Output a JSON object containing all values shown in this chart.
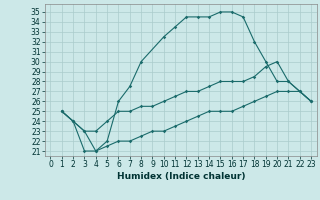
{
  "xlabel": "Humidex (Indice chaleur)",
  "background_color": "#cce8e8",
  "grid_color": "#aacccc",
  "line_color": "#1a6b6b",
  "xlim": [
    -0.5,
    23.5
  ],
  "ylim": [
    20.5,
    35.8
  ],
  "xticks": [
    0,
    1,
    2,
    3,
    4,
    5,
    6,
    7,
    8,
    9,
    10,
    11,
    12,
    13,
    14,
    15,
    16,
    17,
    18,
    19,
    20,
    21,
    22,
    23
  ],
  "yticks": [
    21,
    22,
    23,
    24,
    25,
    26,
    27,
    28,
    29,
    30,
    31,
    32,
    33,
    34,
    35
  ],
  "series1_x": [
    1,
    2,
    3,
    4,
    5,
    6,
    7,
    8,
    10,
    11,
    12,
    13,
    14,
    15,
    16,
    17,
    18,
    19,
    20,
    21,
    23
  ],
  "series1_y": [
    25,
    24,
    21,
    21,
    22,
    26,
    27.5,
    30,
    32.5,
    33.5,
    34.5,
    34.5,
    34.5,
    35,
    35,
    34.5,
    32,
    30,
    28,
    28,
    26
  ],
  "series2_x": [
    1,
    2,
    3,
    4,
    5,
    6,
    7,
    8,
    9,
    10,
    11,
    12,
    13,
    14,
    15,
    16,
    17,
    18,
    19,
    20,
    21,
    22,
    23
  ],
  "series2_y": [
    25,
    24,
    23,
    23,
    24,
    25,
    25,
    25.5,
    25.5,
    26,
    26.5,
    27,
    27,
    27.5,
    28,
    28,
    28,
    28.5,
    29.5,
    30,
    28,
    27,
    26
  ],
  "series3_x": [
    1,
    2,
    3,
    4,
    5,
    6,
    7,
    8,
    9,
    10,
    11,
    12,
    13,
    14,
    15,
    16,
    17,
    18,
    19,
    20,
    21,
    22,
    23
  ],
  "series3_y": [
    25,
    24,
    23,
    21,
    21.5,
    22,
    22,
    22.5,
    23,
    23,
    23.5,
    24,
    24.5,
    25,
    25,
    25,
    25.5,
    26,
    26.5,
    27,
    27,
    27,
    26
  ],
  "tick_fontsize": 5.5,
  "xlabel_fontsize": 6.5
}
